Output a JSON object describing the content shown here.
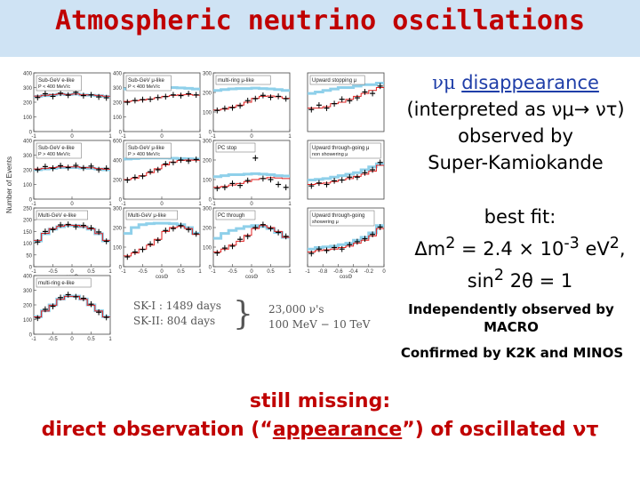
{
  "title": "Atmospheric neutrino oscillations",
  "right_text": {
    "nu_mu": "νμ",
    "disappearance": "disappearance",
    "interpreted": "(interpreted as νμ→ ντ)",
    "observed_by": "observed by",
    "experiment": "Super-Kamiokande",
    "best_fit_label": "best fit:",
    "dm2_prefix": "Δm",
    "dm2_sup": "2",
    "dm2_mid": " = 2.4 × 10",
    "dm2_exp": "-3",
    "dm2_unit": " eV",
    "dm2_unit_sup": "2",
    "dm2_suffix": ",",
    "sin_prefix": "sin",
    "sin_sup": "2",
    "sin_suffix": " 2θ = 1",
    "independent": "Independently observed  by MACRO",
    "confirmed": "Confirmed by K2K and MINOS"
  },
  "missing": {
    "line1": "still missing:",
    "line2_prefix": "direct observation (“",
    "line2_underlined": "appearance",
    "line2_suffix": "”) of oscillated ",
    "line2_nu": "ντ"
  },
  "legend": {
    "sk1": "SK-I : 1489 days",
    "sk2": "SK-II: 804 days",
    "brace": "}",
    "count": "23,000 ν's",
    "range": "100 MeV − 10 TeV"
  },
  "chart_data": {
    "type": "line",
    "ylabel": "Number of Events",
    "xlabel": "cosΘ",
    "colors": {
      "expected_no_osc": "#8fd0ea",
      "best_fit": "#e02020",
      "data": "#000000",
      "title_fill": "#cfe3f4",
      "title_text": "#c00000",
      "text_blue": "#1f3ea8"
    },
    "panels": [
      {
        "title": "Sub-GeV e-like",
        "subtitle": "P < 400 MeV/c",
        "ylim": [
          0,
          400
        ],
        "yticks": [
          "0",
          "100",
          "200",
          "300",
          "400"
        ],
        "xlim": [
          -1,
          1
        ],
        "xticks": [
          "-1",
          "0",
          "1"
        ],
        "x": [
          -0.9,
          -0.7,
          -0.5,
          -0.3,
          -0.1,
          0.1,
          0.3,
          0.5,
          0.7,
          0.9
        ],
        "expected": [
          240,
          245,
          250,
          255,
          252,
          255,
          250,
          248,
          245,
          240
        ],
        "fit": [
          242,
          247,
          252,
          256,
          253,
          256,
          251,
          249,
          246,
          241
        ],
        "data": [
          232,
          258,
          240,
          262,
          248,
          268,
          245,
          250,
          236,
          230
        ]
      },
      {
        "title": "Sub-GeV μ-like",
        "subtitle": "P < 400 MeV/c",
        "ylim": [
          0,
          400
        ],
        "yticks": [
          "0",
          "100",
          "200",
          "300",
          "400"
        ],
        "xlim": [
          -1,
          1
        ],
        "xticks": [
          "-1",
          "0",
          "1"
        ],
        "x": [
          -0.9,
          -0.7,
          -0.5,
          -0.3,
          -0.1,
          0.1,
          0.3,
          0.5,
          0.7,
          0.9
        ],
        "expected": [
          290,
          295,
          300,
          302,
          305,
          305,
          300,
          298,
          295,
          290
        ],
        "fit": [
          205,
          210,
          215,
          222,
          230,
          240,
          246,
          250,
          252,
          248
        ],
        "data": [
          200,
          212,
          218,
          220,
          232,
          238,
          250,
          245,
          258,
          250
        ]
      },
      {
        "title": "multi-ring μ-like",
        "subtitle": "",
        "ylim": [
          0,
          300
        ],
        "yticks": [
          "0",
          "100",
          "200",
          "300"
        ],
        "xlim": [
          -1,
          1
        ],
        "xticks": [
          "-1",
          "0",
          "1"
        ],
        "x": [
          -0.9,
          -0.7,
          -0.5,
          -0.3,
          -0.1,
          0.1,
          0.3,
          0.5,
          0.7,
          0.9
        ],
        "expected": [
          210,
          215,
          218,
          220,
          220,
          222,
          220,
          218,
          215,
          210
        ],
        "fit": [
          110,
          115,
          125,
          135,
          150,
          170,
          180,
          182,
          178,
          170
        ],
        "data": [
          108,
          118,
          122,
          132,
          158,
          168,
          185,
          175,
          180,
          168
        ]
      },
      {
        "title": "Upward stopping μ",
        "subtitle": "",
        "ylim": [
          0,
          4
        ],
        "yticks": [],
        "xlim": [
          -1,
          0
        ],
        "xticks": [],
        "x": [
          -0.95,
          -0.85,
          -0.75,
          -0.65,
          -0.55,
          -0.45,
          -0.35,
          -0.25,
          -0.15,
          -0.05
        ],
        "expected": [
          2.6,
          2.7,
          2.8,
          2.9,
          3.0,
          3.0,
          3.1,
          3.2,
          3.2,
          3.3
        ],
        "fit": [
          1.6,
          1.6,
          1.7,
          1.9,
          2.0,
          2.2,
          2.4,
          2.6,
          2.8,
          3.0
        ],
        "data": [
          1.5,
          1.8,
          1.6,
          1.9,
          2.2,
          2.1,
          2.3,
          2.7,
          2.6,
          3.1
        ]
      },
      {
        "title": "Sub-GeV e-like",
        "subtitle": "P > 400 MeV/c",
        "ylim": [
          0,
          400
        ],
        "yticks": [
          "0",
          "100",
          "200",
          "300",
          "400"
        ],
        "xlim": [
          -1,
          1
        ],
        "xticks": [
          "-1",
          "0",
          "1"
        ],
        "x": [
          -0.9,
          -0.7,
          -0.5,
          -0.3,
          -0.1,
          0.1,
          0.3,
          0.5,
          0.7,
          0.9
        ],
        "expected": [
          200,
          205,
          210,
          215,
          215,
          215,
          212,
          210,
          205,
          200
        ],
        "fit": [
          205,
          210,
          215,
          220,
          220,
          220,
          216,
          214,
          208,
          204
        ],
        "data": [
          200,
          222,
          210,
          228,
          215,
          230,
          212,
          225,
          200,
          210
        ]
      },
      {
        "title": "Sub-GeV μ-like",
        "subtitle": "P > 400 MeV/c",
        "ylim": [
          0,
          600
        ],
        "yticks": [
          "0",
          "200",
          "400",
          "600"
        ],
        "xlim": [
          -1,
          1
        ],
        "xticks": [
          "-1",
          "0",
          "1"
        ],
        "x": [
          -0.9,
          -0.7,
          -0.5,
          -0.3,
          -0.1,
          0.1,
          0.3,
          0.5,
          0.7,
          0.9
        ],
        "expected": [
          410,
          415,
          420,
          420,
          420,
          420,
          418,
          415,
          412,
          410
        ],
        "fit": [
          200,
          215,
          240,
          270,
          310,
          350,
          380,
          395,
          400,
          398
        ],
        "data": [
          195,
          222,
          235,
          280,
          300,
          360,
          375,
          400,
          390,
          405
        ]
      },
      {
        "title": "PC stop",
        "subtitle": "",
        "ylim": [
          0,
          300
        ],
        "yticks": [
          "0",
          "100",
          "200",
          "300"
        ],
        "xlim": [
          -1,
          1
        ],
        "xticks": [
          "-1",
          "0",
          "1"
        ],
        "x": [
          -0.9,
          -0.7,
          -0.5,
          -0.3,
          -0.1,
          0.1,
          0.3,
          0.5,
          0.7,
          0.9
        ],
        "expected": [
          115,
          120,
          125,
          125,
          128,
          130,
          128,
          125,
          120,
          118
        ],
        "fit": [
          60,
          65,
          72,
          80,
          90,
          100,
          105,
          110,
          108,
          105
        ],
        "data": [
          55,
          60,
          80,
          70,
          95,
          210,
          105,
          100,
          75,
          60
        ]
      },
      {
        "title": "Upward through-going μ",
        "subtitle": "non showering μ",
        "ylim": [
          0,
          4
        ],
        "yticks": [],
        "xlim": [
          -1,
          0
        ],
        "xticks": [],
        "x": [
          -0.95,
          -0.85,
          -0.75,
          -0.65,
          -0.55,
          -0.45,
          -0.35,
          -0.25,
          -0.15,
          -0.05
        ],
        "expected": [
          1.3,
          1.35,
          1.4,
          1.5,
          1.6,
          1.7,
          1.8,
          2.0,
          2.2,
          2.4
        ],
        "fit": [
          1.0,
          1.05,
          1.1,
          1.2,
          1.3,
          1.4,
          1.55,
          1.7,
          1.9,
          2.3
        ],
        "data": [
          0.9,
          1.1,
          1.0,
          1.25,
          1.3,
          1.5,
          1.5,
          1.8,
          2.0,
          2.5
        ]
      },
      {
        "title": "Multi-GeV e-like",
        "subtitle": "",
        "ylim": [
          0,
          250
        ],
        "yticks": [
          "0",
          "50",
          "100",
          "150",
          "200",
          "250"
        ],
        "xlim": [
          -1,
          1
        ],
        "xticks": [
          "-1",
          "-0.5",
          "0",
          "0.5",
          "1"
        ],
        "x": [
          -0.9,
          -0.7,
          -0.5,
          -0.3,
          -0.1,
          0.1,
          0.3,
          0.5,
          0.7,
          0.9
        ],
        "expected": [
          110,
          140,
          160,
          170,
          175,
          175,
          170,
          160,
          140,
          110
        ],
        "fit": [
          112,
          142,
          162,
          172,
          177,
          176,
          171,
          161,
          141,
          112
        ],
        "data": [
          105,
          150,
          158,
          178,
          180,
          170,
          176,
          165,
          148,
          108
        ]
      },
      {
        "title": "Multi-GeV μ-like",
        "subtitle": "",
        "ylim": [
          0,
          300
        ],
        "yticks": [
          "0",
          "100",
          "200",
          "300"
        ],
        "xlim": [
          -1,
          1
        ],
        "xticks": [
          "-1",
          "-0.5",
          "0",
          "0.5",
          "1"
        ],
        "x": [
          -0.9,
          -0.7,
          -0.5,
          -0.3,
          -0.1,
          0.1,
          0.3,
          0.5,
          0.7,
          0.9
        ],
        "expected": [
          170,
          200,
          215,
          220,
          222,
          222,
          220,
          215,
          200,
          170
        ],
        "fit": [
          55,
          70,
          90,
          110,
          140,
          180,
          200,
          205,
          195,
          165
        ],
        "data": [
          50,
          75,
          88,
          115,
          135,
          185,
          195,
          210,
          190,
          168
        ]
      },
      {
        "title": "PC through",
        "subtitle": "",
        "ylim": [
          0,
          300
        ],
        "yticks": [
          "0",
          "100",
          "200",
          "300"
        ],
        "xlim": [
          -1,
          1
        ],
        "xticks": [
          "-1",
          "-0.5",
          "0",
          "0.5",
          "1"
        ],
        "x": [
          -0.9,
          -0.7,
          -0.5,
          -0.3,
          -0.1,
          0.1,
          0.3,
          0.5,
          0.7,
          0.9
        ],
        "expected": [
          145,
          170,
          185,
          195,
          205,
          210,
          205,
          195,
          175,
          150
        ],
        "fit": [
          75,
          90,
          110,
          130,
          160,
          195,
          210,
          200,
          180,
          150
        ],
        "data": [
          70,
          95,
          105,
          140,
          155,
          200,
          215,
          195,
          175,
          155
        ]
      },
      {
        "title": "Upward through-going",
        "subtitle": "showering μ",
        "ylim": [
          0,
          4
        ],
        "yticks": [],
        "xlim": [
          -1,
          0
        ],
        "xticks": [
          "-1",
          "-0.8",
          "-0.6",
          "-0.4",
          "-0.2",
          "0"
        ],
        "x": [
          -0.95,
          -0.85,
          -0.75,
          -0.65,
          -0.55,
          -0.45,
          -0.35,
          -0.25,
          -0.15,
          -0.05
        ],
        "expected": [
          1.2,
          1.3,
          1.35,
          1.4,
          1.5,
          1.6,
          1.8,
          2.0,
          2.3,
          2.8
        ],
        "fit": [
          1.0,
          1.1,
          1.15,
          1.2,
          1.3,
          1.4,
          1.6,
          1.8,
          2.1,
          2.6
        ],
        "data": [
          0.9,
          1.2,
          1.1,
          1.3,
          1.2,
          1.5,
          1.7,
          1.9,
          2.2,
          2.7
        ]
      },
      {
        "title": "multi-ring e-like",
        "subtitle": "",
        "ylim": [
          0,
          400
        ],
        "yticks": [
          "0",
          "100",
          "200",
          "300",
          "400"
        ],
        "xlim": [
          -1,
          1
        ],
        "xticks": [
          "-1",
          "-0.5",
          "0",
          "0.5",
          "1"
        ],
        "x": [
          -0.9,
          -0.7,
          -0.5,
          -0.3,
          -0.1,
          0.1,
          0.3,
          0.5,
          0.7,
          0.9
        ],
        "expected": [
          120,
          160,
          200,
          240,
          260,
          260,
          240,
          200,
          160,
          120
        ],
        "fit": [
          118,
          158,
          198,
          238,
          258,
          258,
          238,
          198,
          158,
          118
        ],
        "data": [
          110,
          170,
          190,
          250,
          270,
          255,
          245,
          205,
          150,
          115
        ]
      }
    ]
  }
}
